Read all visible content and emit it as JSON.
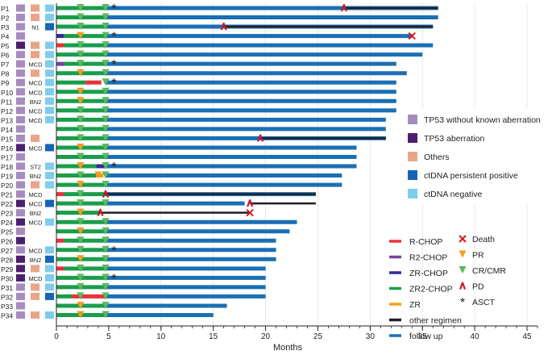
{
  "chart_data": {
    "type": "swimmer",
    "xlabel": "Months",
    "xlim": [
      0,
      46
    ],
    "xticks": [
      0,
      5,
      10,
      15,
      20,
      25,
      30,
      35,
      40,
      45
    ],
    "colors": {
      "tp53_without": "#a78bbf",
      "tp53_aberration": "#4b1e6e",
      "others": "#e8a58a",
      "ctdna_pos": "#1565b5",
      "ctdna_neg": "#7fcdeb",
      "rchop": "#e8323a",
      "r2chop": "#7b3fa0",
      "zrchop": "#2e2f8f",
      "zr2chop": "#1a9d4b",
      "zr": "#f0a31a",
      "other": "#231f20",
      "follow": "#1a6fb4",
      "death": "#d7191c",
      "pr": "#f39c1e",
      "cr": "#5bb85e",
      "pd": "#c41a2a"
    },
    "patients": [
      {
        "id": "P1",
        "tp53": "w",
        "oth": true,
        "mut": "",
        "ct": "neg",
        "ri": 0.1,
        "zr2": [
          0,
          4.7
        ],
        "ot": [
          27.5,
          36.5
        ],
        "end": 36.5,
        "cr": [
          2.3,
          4.7
        ],
        "asct": 5.5,
        "pd": 27.5
      },
      {
        "id": "P2",
        "tp53": "w",
        "oth": true,
        "mut": "",
        "ct": "neg",
        "ri": 0.1,
        "zr2": [
          0,
          4.7
        ],
        "end": 36.5,
        "cr": [
          2.3,
          4.7
        ]
      },
      {
        "id": "P3",
        "tp53": "w",
        "oth": false,
        "mut": "N1",
        "ct": "pos",
        "ri": 0.1,
        "zr2": [
          0,
          4.7
        ],
        "ot": [
          16.0,
          36.0
        ],
        "end": 36.0,
        "cr": [
          2.3,
          4.7
        ],
        "pd": 16.0
      },
      {
        "id": "P4",
        "tp53": "w",
        "oth": false,
        "mut": "",
        "ct": "",
        "ri": 0.1,
        "zrc": [
          0,
          0.7
        ],
        "zr2": [
          0.7,
          4.7
        ],
        "end": 34.0,
        "pr": [
          2.3
        ],
        "cr": [
          4.7
        ],
        "asct": 5.5,
        "death": 34.0
      },
      {
        "id": "P5",
        "tp53": "a",
        "oth": true,
        "mut": "",
        "ct": "neg",
        "rc": [
          0,
          0.7
        ],
        "zr2": [
          0.7,
          4.7
        ],
        "end": 36.0,
        "cr": [
          2.3,
          4.7
        ]
      },
      {
        "id": "P6",
        "tp53": "w",
        "oth": true,
        "mut": "",
        "ct": "neg",
        "ri": 0.1,
        "zr2": [
          0,
          4.7
        ],
        "end": 35.0,
        "cr": [
          2.3,
          4.7
        ]
      },
      {
        "id": "P7",
        "tp53": "w",
        "oth": false,
        "mut": "MCD",
        "ct": "neg",
        "ri": 0.1,
        "r2": [
          0,
          0.7
        ],
        "zr2": [
          0.7,
          4.7
        ],
        "end": 32.5,
        "cr": [
          2.3,
          4.7
        ],
        "asct": 5.5
      },
      {
        "id": "P8",
        "tp53": "w",
        "oth": true,
        "mut": "",
        "ct": "neg",
        "ri": 0.1,
        "zr2": [
          0,
          4.7
        ],
        "end": 33.5,
        "pr": [
          2.3
        ],
        "cr": [
          4.7
        ]
      },
      {
        "id": "P9",
        "tp53": "w",
        "oth": false,
        "mut": "MCD",
        "ct": "neg",
        "ri": 0.1,
        "zr2": [
          0,
          2.8
        ],
        "rc": [
          2.8,
          4.3
        ],
        "end": 32.5,
        "cr": [
          4.7
        ],
        "asct": 5.5
      },
      {
        "id": "P10",
        "tp53": "w",
        "oth": false,
        "mut": "MCD",
        "ct": "neg",
        "ri": 0.1,
        "zr2": [
          0,
          4.7
        ],
        "end": 32.5,
        "pr": [
          2.3
        ],
        "cr": [
          4.7
        ]
      },
      {
        "id": "P11",
        "tp53": "w",
        "oth": false,
        "mut": "BN2",
        "ct": "neg",
        "ri": 0.1,
        "zr2": [
          0,
          4.7
        ],
        "end": 32.5,
        "pr": [
          2.3
        ],
        "cr": [
          4.7
        ]
      },
      {
        "id": "P12",
        "tp53": "w",
        "oth": false,
        "mut": "MCD",
        "ct": "neg",
        "ri": 0.1,
        "zr2": [
          0,
          4.7
        ],
        "end": 32.5,
        "cr": [
          2.3,
          4.7
        ]
      },
      {
        "id": "P13",
        "tp53": "w",
        "oth": false,
        "mut": "MCD",
        "ct": "neg",
        "ri": 0.1,
        "zr2": [
          0,
          4.7
        ],
        "end": 31.5,
        "cr": [
          2.3,
          4.7
        ]
      },
      {
        "id": "P14",
        "tp53": "w",
        "oth": false,
        "mut": "",
        "ct": "",
        "ri": 0.1,
        "zr2": [
          0,
          4.7
        ],
        "end": 31.5,
        "cr": [
          2.3,
          4.7
        ]
      },
      {
        "id": "P15",
        "tp53": "w",
        "oth": true,
        "mut": "",
        "ct": "",
        "ri": 0.1,
        "zr2": [
          0,
          4.7
        ],
        "ot": [
          19.5,
          31.5
        ],
        "end": 31.5,
        "cr": [
          2.3,
          4.7
        ],
        "pd": 19.5
      },
      {
        "id": "P16",
        "tp53": "a",
        "oth": false,
        "mut": "MCD",
        "ct": "pos",
        "ri": 0.1,
        "zr2": [
          0,
          4.7
        ],
        "end": 28.7,
        "pr": [
          2.3
        ],
        "cr": [
          4.7
        ]
      },
      {
        "id": "P17",
        "tp53": "w",
        "oth": false,
        "mut": "",
        "ct": "",
        "ri": 0.1,
        "zr2": [
          0,
          4.7
        ],
        "end": 28.7,
        "cr": [
          2.3,
          4.7
        ]
      },
      {
        "id": "P18",
        "tp53": "w",
        "oth": false,
        "mut": "ST2",
        "ct": "neg",
        "ri": 0.1,
        "zr2": [
          0,
          3.8
        ],
        "zrc": [
          3.8,
          4.7
        ],
        "end": 28.7,
        "pr": [
          2.3
        ],
        "cr": [
          4.7
        ],
        "asct": 5.5
      },
      {
        "id": "P19",
        "tp53": "w",
        "oth": false,
        "mut": "BN2",
        "ct": "neg",
        "ri": 0.1,
        "zr2": [
          0,
          3.8
        ],
        "zr": [
          3.8,
          4.5
        ],
        "end": 27.3,
        "pr": [
          4.0
        ],
        "cr": [
          2.3,
          4.7
        ]
      },
      {
        "id": "P20",
        "tp53": "w",
        "oth": true,
        "mut": "",
        "ct": "neg",
        "ri": 0.1,
        "zr2": [
          0,
          4.7
        ],
        "end": 27.3,
        "pr": [
          2.3
        ],
        "cr": [
          4.7
        ]
      },
      {
        "id": "P21",
        "tp53": "w",
        "oth": false,
        "mut": "MCD",
        "ct": "",
        "rc": [
          0,
          0.7
        ],
        "zr2": [
          0.7,
          4.7
        ],
        "ot": [
          4.7,
          24.8
        ],
        "end": 24.8,
        "cr": [
          2.3
        ],
        "pd": 4.7
      },
      {
        "id": "P22",
        "tp53": "a",
        "oth": false,
        "mut": "MCD",
        "ct": "pos",
        "ri": 0.1,
        "zr2": [
          0,
          4.7
        ],
        "ot": [
          18.5,
          24.8
        ],
        "end": 18.0,
        "cr": [
          2.3,
          4.7
        ],
        "pd": 18.5
      },
      {
        "id": "P23",
        "tp53": "w",
        "oth": false,
        "mut": "BN2",
        "ct": "",
        "ri": 0.1,
        "zr2": [
          0,
          4.2
        ],
        "ot": [
          4.2,
          18.5
        ],
        "end": 0,
        "pr": [
          2.3
        ],
        "pd": 4.2,
        "death": 18.5
      },
      {
        "id": "P24",
        "tp53": "a",
        "oth": false,
        "mut": "MCD",
        "ct": "neg",
        "ri": 0.1,
        "zr2": [
          0,
          4.7
        ],
        "end": 23.0,
        "cr": [
          2.3,
          4.7
        ]
      },
      {
        "id": "P25",
        "tp53": "w",
        "oth": false,
        "mut": "",
        "ct": "",
        "ri": 0.1,
        "zr2": [
          0,
          4.7
        ],
        "end": 22.3,
        "pr": [
          2.3
        ],
        "cr": [
          4.7
        ]
      },
      {
        "id": "P26",
        "tp53": "a",
        "oth": false,
        "mut": "",
        "ct": "",
        "rc": [
          0,
          0.7
        ],
        "zr2": [
          0.7,
          4.7
        ],
        "end": 21.0,
        "cr": [
          2.3,
          4.7
        ]
      },
      {
        "id": "P27",
        "tp53": "w",
        "oth": false,
        "mut": "MCD",
        "ct": "neg",
        "ri": 0.1,
        "zr2": [
          0,
          4.7
        ],
        "end": 21.0,
        "cr": [
          2.3,
          4.7
        ],
        "asct": 5.5
      },
      {
        "id": "P28",
        "tp53": "a",
        "oth": false,
        "mut": "BN2",
        "ct": "pos",
        "ri": 0.1,
        "zr2": [
          0,
          4.7
        ],
        "end": 21.0,
        "pr": [
          2.3
        ],
        "cr": [
          4.7
        ]
      },
      {
        "id": "P29",
        "tp53": "a",
        "oth": true,
        "mut": "",
        "ct": "neg",
        "rc": [
          0,
          0.7
        ],
        "zr2": [
          0.7,
          4.7
        ],
        "end": 20.0,
        "cr": [
          2.3,
          4.7
        ]
      },
      {
        "id": "P30",
        "tp53": "a",
        "oth": false,
        "mut": "MCD",
        "ct": "neg",
        "ri": 0.1,
        "zr2": [
          0,
          4.7
        ],
        "end": 20.0,
        "cr": [
          2.3,
          4.7
        ],
        "asct": 5.5
      },
      {
        "id": "P31",
        "tp53": "w",
        "oth": true,
        "mut": "",
        "ct": "neg",
        "ri": 0.1,
        "zr2": [
          0,
          4.7
        ],
        "end": 20.0,
        "cr": [
          2.3,
          4.7
        ]
      },
      {
        "id": "P32",
        "tp53": "w",
        "oth": true,
        "mut": "",
        "ct": "pos",
        "ri": 0.1,
        "zr2": [
          0,
          1.5
        ],
        "rc": [
          1.5,
          4.7
        ],
        "end": 20.0,
        "cr": [
          2.3,
          4.7
        ]
      },
      {
        "id": "P33",
        "tp53": "w",
        "oth": false,
        "mut": "",
        "ct": "",
        "ri": 0.1,
        "zr2": [
          0,
          4.7
        ],
        "end": 16.3,
        "pr": [
          2.3
        ],
        "cr": [
          4.7
        ]
      },
      {
        "id": "P34",
        "tp53": "w",
        "oth": true,
        "mut": "",
        "ct": "neg",
        "ri": 0.1,
        "zr2": [
          0,
          4.7
        ],
        "end": 15.0,
        "pr": [
          2.3
        ],
        "cr": [
          4.7
        ]
      }
    ],
    "legend_top": [
      {
        "label": "TP53 without known aberration",
        "key": "tp53_without"
      },
      {
        "label": "TP53 aberration",
        "key": "tp53_aberration"
      },
      {
        "label": "Others",
        "key": "others"
      },
      {
        "label": "ctDNA persistent positive",
        "key": "ctdna_pos"
      },
      {
        "label": "ctDNA negative",
        "key": "ctdna_neg"
      }
    ],
    "legend_lines": [
      {
        "label": "R-CHOP",
        "key": "rchop"
      },
      {
        "label": "R2-CHOP",
        "key": "r2chop"
      },
      {
        "label": "ZR-CHOP",
        "key": "zrchop"
      },
      {
        "label": "ZR2-CHOP",
        "key": "zr2chop"
      },
      {
        "label": "ZR",
        "key": "zr"
      },
      {
        "label": "other regimen",
        "key": "other"
      },
      {
        "label": "follow up",
        "key": "follow"
      }
    ],
    "legend_events": [
      {
        "label": "Death",
        "symbol": "x"
      },
      {
        "label": "PR",
        "symbol": "tri-down-orange"
      },
      {
        "label": "CR/CMR",
        "symbol": "tri-down-green"
      },
      {
        "label": "PD",
        "symbol": "caret"
      },
      {
        "label": "ASCT",
        "symbol": "star"
      }
    ]
  }
}
